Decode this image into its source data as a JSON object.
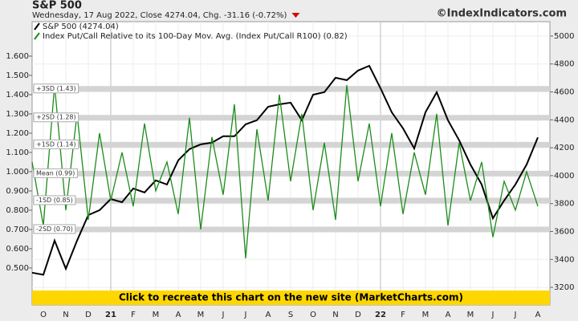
{
  "chart_data": {
    "type": "line",
    "title": "S&P 500",
    "subtitle": "Wednesday, 17 Aug 2022, Close 4274.04, Chg. -31.16 (-0.72%)",
    "watermark": "©IndexIndicators.com",
    "banner": "Click to recreate this chart on the new site (MarketCharts.com)",
    "categories": [
      null,
      "O",
      null,
      "N",
      null,
      "D",
      null,
      "21",
      null,
      "F",
      null,
      "M",
      null,
      "A",
      null,
      "M",
      null,
      "J",
      null,
      "J",
      null,
      "A",
      null,
      "S",
      null,
      "O",
      null,
      "N",
      null,
      "D",
      null,
      "22",
      null,
      "F",
      null,
      "M",
      null,
      "A",
      null,
      "M",
      null,
      "J",
      null,
      "J",
      null,
      "A"
    ],
    "series": [
      {
        "name": "S&P 500 (4274.04)",
        "color": "#000000",
        "axis": "y2",
        "values": [
          3305,
          3290,
          3535,
          3333,
          3535,
          3718,
          3753,
          3833,
          3810,
          3908,
          3880,
          3966,
          3937,
          4110,
          4190,
          4224,
          4236,
          4282,
          4282,
          4368,
          4397,
          4494,
          4511,
          4523,
          4397,
          4580,
          4598,
          4701,
          4684,
          4753,
          4787,
          4626,
          4454,
          4339,
          4195,
          4454,
          4598,
          4397,
          4253,
          4080,
          3937,
          3695,
          3822,
          3937,
          4080,
          4274.04
        ]
      },
      {
        "name": "Index Put/Call Relative to its 100-Day Mov. Avg. (Index Put/Call R100) (0.82)",
        "color": "#1a8c1a",
        "axis": "y",
        "values": [
          1.05,
          0.72,
          1.45,
          0.8,
          1.3,
          0.75,
          1.2,
          0.85,
          1.1,
          0.82,
          1.25,
          0.9,
          1.05,
          0.78,
          1.28,
          0.7,
          1.18,
          0.88,
          1.35,
          0.55,
          1.22,
          0.85,
          1.4,
          0.95,
          1.3,
          0.8,
          1.15,
          0.75,
          1.45,
          0.95,
          1.25,
          0.82,
          1.2,
          0.78,
          1.1,
          0.88,
          1.3,
          0.72,
          1.15,
          0.85,
          1.05,
          0.66,
          0.95,
          0.8,
          1.0,
          0.82
        ]
      }
    ],
    "bands": [
      {
        "label": "+3SD (1.43)",
        "value": 1.43
      },
      {
        "label": "+2SD (1.28)",
        "value": 1.28
      },
      {
        "label": "+1SD (1.14)",
        "value": 1.14
      },
      {
        "label": "Mean (0.99)",
        "value": 0.99
      },
      {
        "label": "-1SD (0.85)",
        "value": 0.85
      },
      {
        "label": "-2SD (0.70)",
        "value": 0.7
      }
    ],
    "ylim": [
      0.308,
      1.779
    ],
    "yticks": [
      {
        "value": 0.5,
        "label": "0.500"
      },
      {
        "value": 0.6,
        "label": "0.600"
      },
      {
        "value": 0.7,
        "label": "0.700"
      },
      {
        "value": 0.8,
        "label": "0.800"
      },
      {
        "value": 0.9,
        "label": "0.900"
      },
      {
        "value": 1.0,
        "label": "1.000"
      },
      {
        "value": 1.1,
        "label": "1.100"
      },
      {
        "value": 1.2,
        "label": "1.200"
      },
      {
        "value": 1.3,
        "label": "1.300"
      },
      {
        "value": 1.4,
        "label": "1.400"
      },
      {
        "value": 1.5,
        "label": "1.500"
      },
      {
        "value": 1.6,
        "label": "1.600"
      }
    ],
    "y2lim": [
      3074,
      5103
    ],
    "y2ticks": [
      3200,
      3400,
      3600,
      3800,
      4000,
      4200,
      4400,
      4600,
      4800,
      5000
    ],
    "grid": true
  }
}
